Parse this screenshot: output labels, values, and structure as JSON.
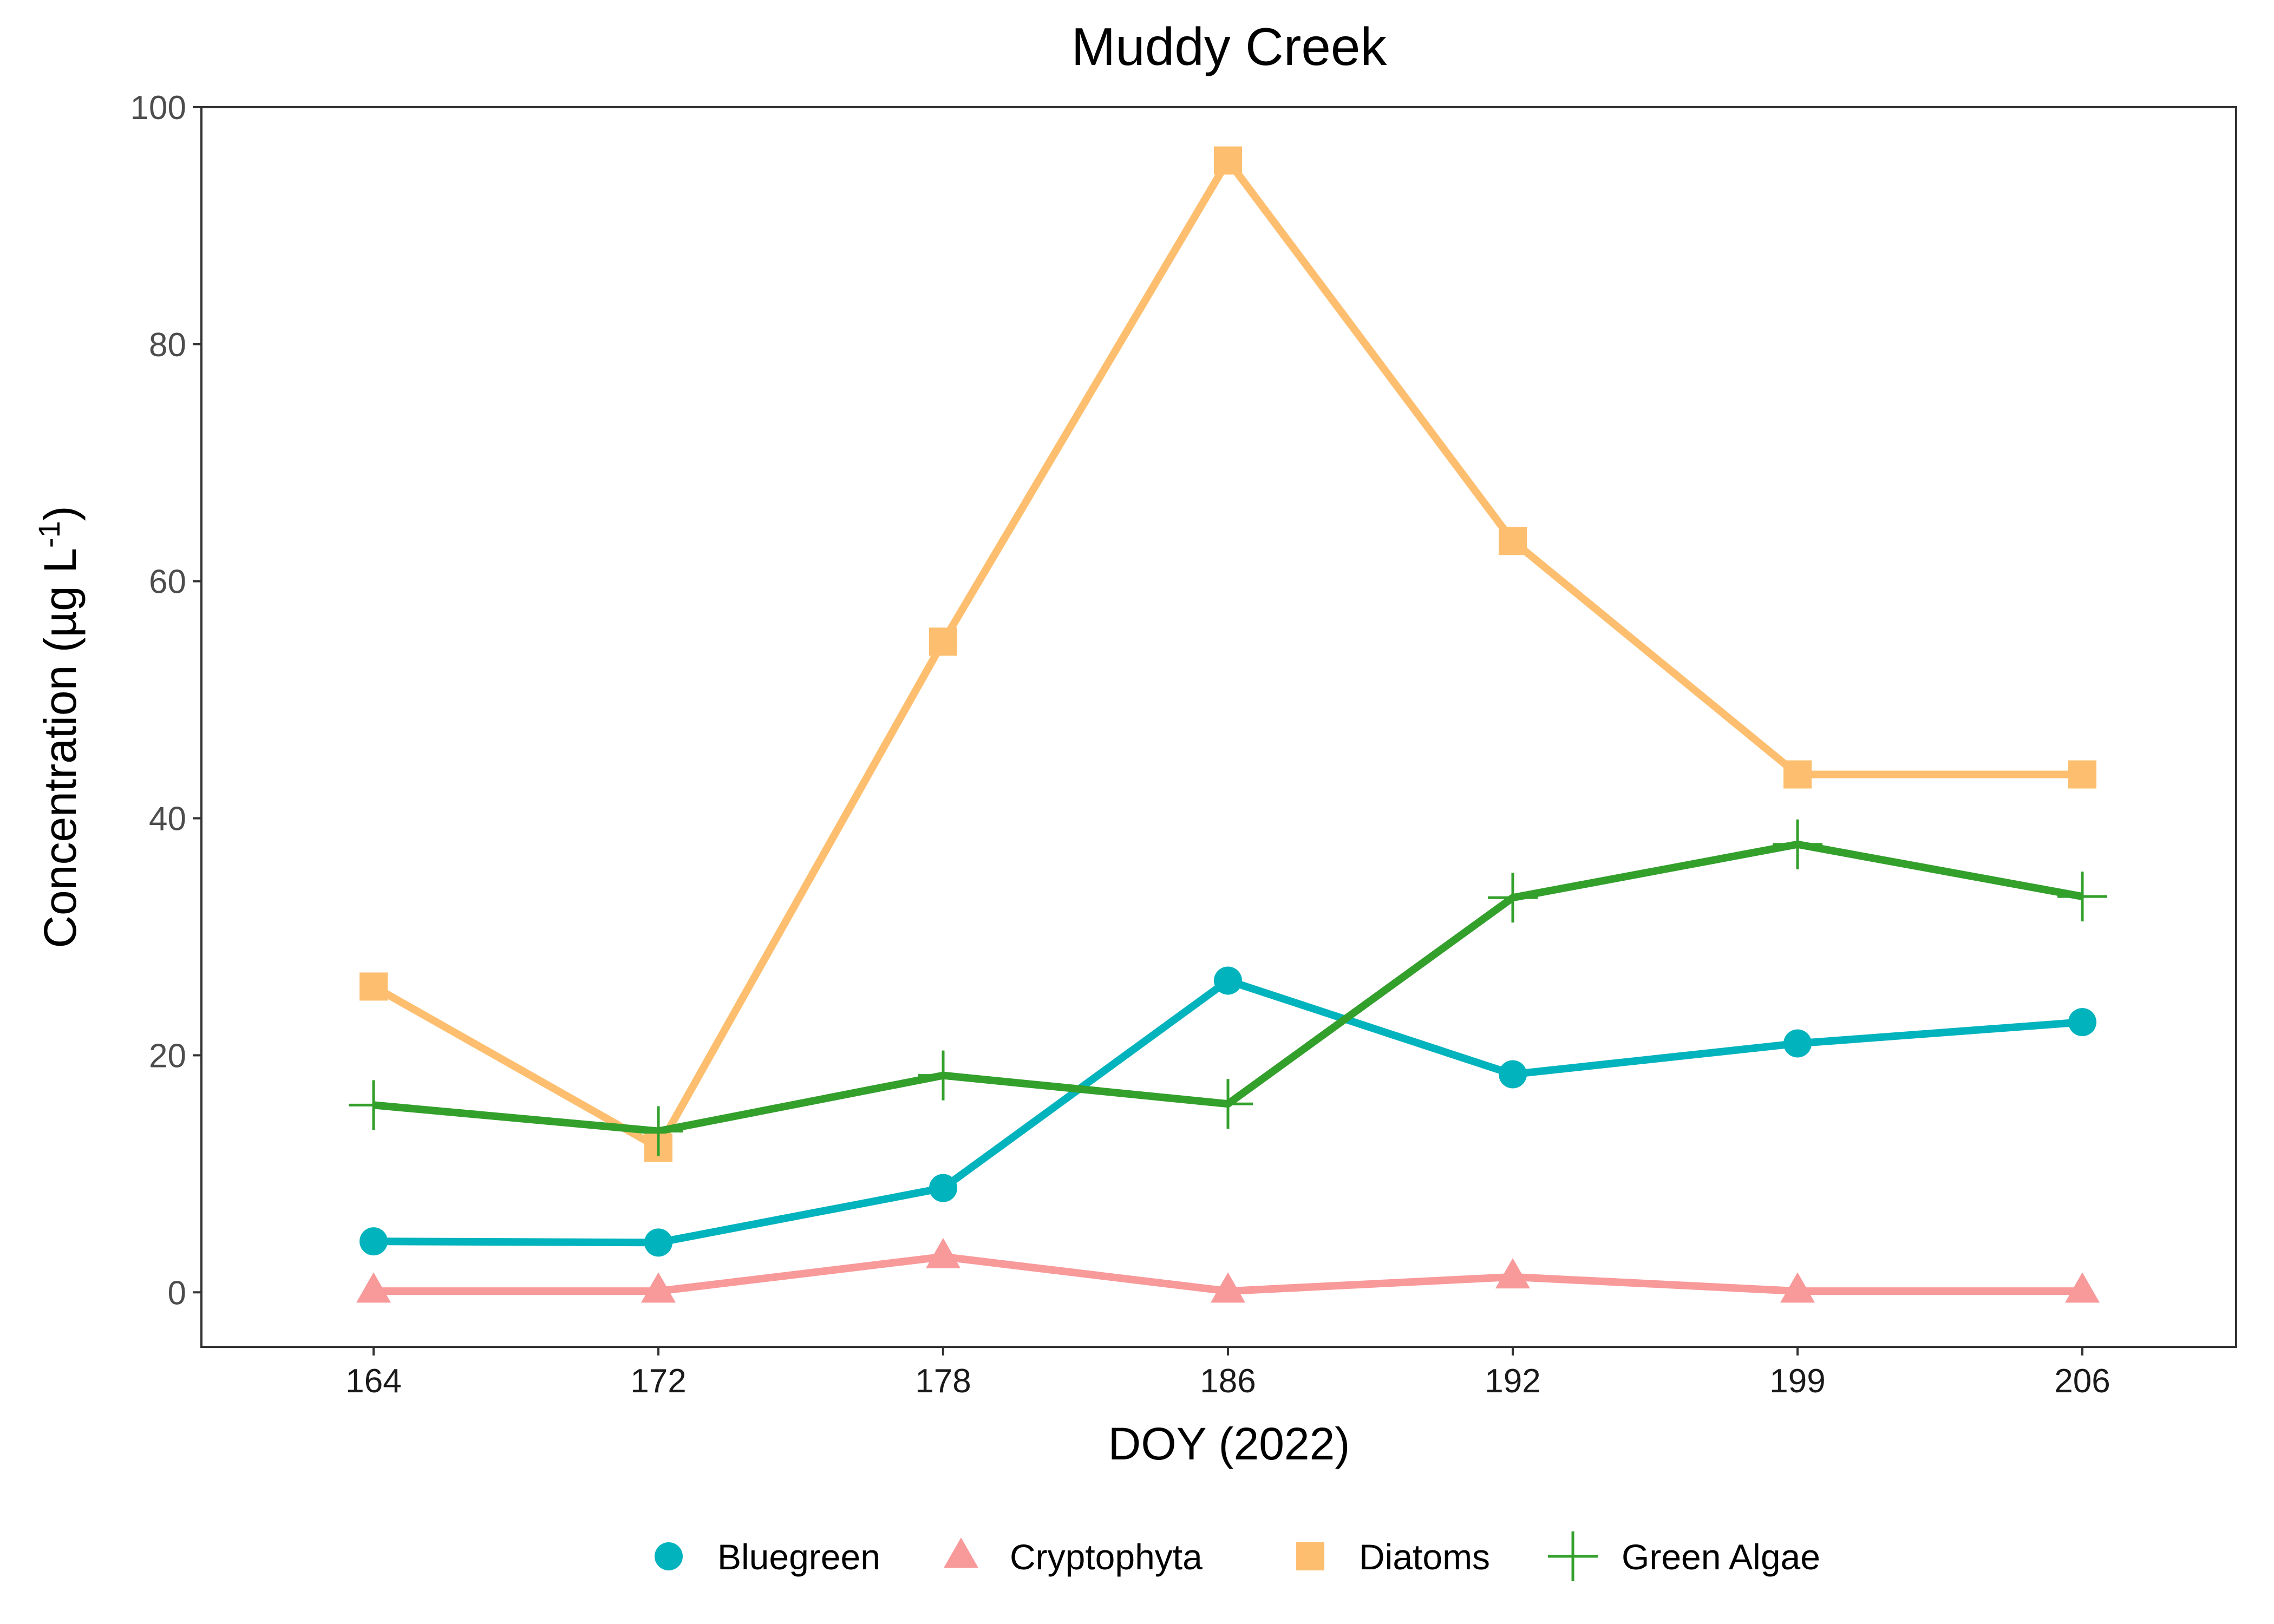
{
  "chart_data": {
    "type": "line",
    "title": "Muddy Creek",
    "xlabel": "DOY (2022)",
    "ylabel_main": "Concentration (µg L",
    "ylabel_sup": "-1",
    "ylabel_close": ")",
    "x": [
      "164",
      "172",
      "178",
      "186",
      "192",
      "199",
      "206"
    ],
    "ylim": [
      -4.6,
      100
    ],
    "yticks": [
      0,
      20,
      40,
      60,
      80,
      100
    ],
    "grid": false,
    "legend_position": "bottom",
    "series": [
      {
        "name": "Bluegreen",
        "color": "#00B3BD",
        "marker": "circle",
        "values": [
          4.3,
          4.2,
          8.8,
          26.3,
          18.4,
          21.0,
          22.8
        ]
      },
      {
        "name": "Cryptophyta",
        "color": "#F8999A",
        "marker": "triangle",
        "values": [
          0.1,
          0.1,
          3.0,
          0.1,
          1.3,
          0.1,
          0.1
        ]
      },
      {
        "name": "Diatoms",
        "color": "#FDBF6F",
        "marker": "square",
        "values": [
          25.8,
          12.2,
          54.9,
          95.5,
          63.4,
          43.7,
          43.7
        ]
      },
      {
        "name": "Green Algae",
        "color": "#33A02C",
        "marker": "plus",
        "values": [
          15.8,
          13.6,
          18.3,
          15.9,
          33.3,
          37.8,
          33.4
        ]
      }
    ]
  }
}
